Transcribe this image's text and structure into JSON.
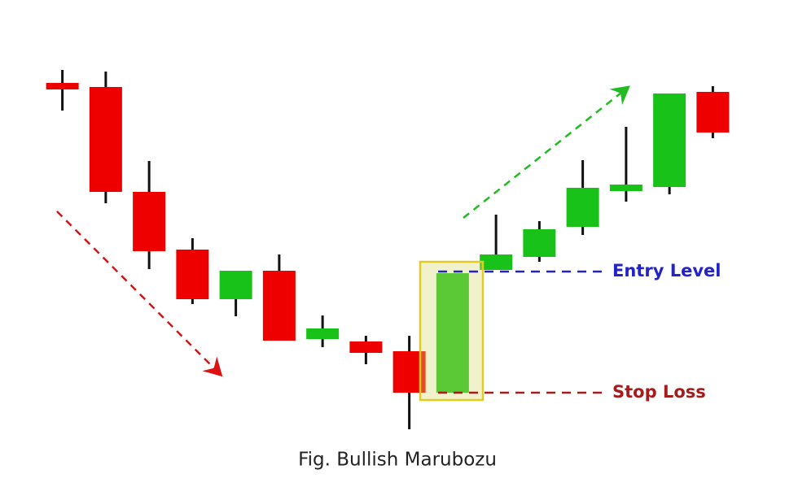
{
  "chart_data": {
    "type": "candlestick",
    "caption": "Fig. Bullish Marubozu",
    "ylim": [
      0,
      600
    ],
    "up_color": "#19c219",
    "down_color": "#ee0000",
    "open": [
      498,
      493,
      364,
      293,
      232,
      267,
      183,
      180,
      168,
      117,
      268,
      284,
      321,
      365,
      370,
      487
    ],
    "high": [
      514,
      512,
      402,
      307,
      267,
      287,
      212,
      187,
      187,
      264,
      336,
      328,
      403,
      444,
      485,
      494
    ],
    "low": [
      464,
      350,
      269,
      226,
      211,
      181,
      173,
      152,
      72,
      117,
      268,
      278,
      311,
      352,
      361,
      430
    ],
    "close": [
      490,
      364,
      291,
      232,
      267,
      181,
      196,
      166,
      117,
      264,
      287,
      318,
      369,
      373,
      485,
      437
    ],
    "levels": [
      {
        "name": "Entry Level",
        "value": 266,
        "color": "#2323c8"
      },
      {
        "name": "Stop Loss",
        "value": 117,
        "color": "#a51c1c"
      }
    ]
  }
}
